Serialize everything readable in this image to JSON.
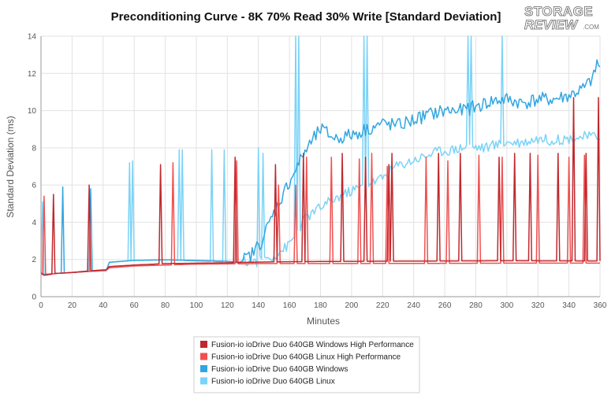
{
  "logo": {
    "line1": "STORAGE",
    "line2": "REVIEW",
    "suffix": ".COM"
  },
  "chart_data": {
    "type": "line",
    "title": "Preconditioning Curve - 8K 70% Read 30% Write [Standard Deviation]",
    "xlabel": "Minutes",
    "ylabel": "Standard Deviation (ms)",
    "xlim": [
      0,
      360
    ],
    "ylim": [
      0,
      14
    ],
    "xticks": [
      0,
      20,
      40,
      60,
      80,
      100,
      120,
      140,
      160,
      180,
      200,
      220,
      240,
      260,
      280,
      300,
      320,
      340,
      360
    ],
    "yticks": [
      0,
      2,
      4,
      6,
      8,
      10,
      12,
      14
    ],
    "grid": true,
    "legend_position": "bottom-center",
    "series": [
      {
        "name": "Fusion-io ioDrive Duo 640GB Windows High Performance",
        "color": "#c0282d",
        "baseline": [
          [
            0,
            1.25
          ],
          [
            2,
            1.15
          ],
          [
            10,
            1.25
          ],
          [
            20,
            1.3
          ],
          [
            30,
            1.38
          ],
          [
            42,
            1.45
          ],
          [
            44,
            1.62
          ],
          [
            60,
            1.7
          ],
          [
            80,
            1.78
          ],
          [
            100,
            1.8
          ],
          [
            120,
            1.82
          ],
          [
            140,
            1.86
          ],
          [
            160,
            1.88
          ],
          [
            200,
            1.9
          ],
          [
            260,
            1.92
          ],
          [
            300,
            1.93
          ],
          [
            360,
            1.92
          ]
        ],
        "spikes": [
          [
            8,
            5.5
          ],
          [
            31,
            6.0
          ],
          [
            77,
            7.1
          ],
          [
            125,
            7.5
          ],
          [
            151,
            7.1
          ],
          [
            169,
            7.7
          ],
          [
            194,
            7.7
          ],
          [
            209,
            7.5
          ],
          [
            224,
            7.1
          ],
          [
            226,
            7.7
          ],
          [
            256,
            7.7
          ],
          [
            270,
            7.7
          ],
          [
            295,
            7.5
          ],
          [
            305,
            7.7
          ],
          [
            315,
            7.7
          ],
          [
            333,
            7.7
          ],
          [
            343,
            10.7
          ],
          [
            351,
            7.7
          ],
          [
            359,
            10.7
          ]
        ]
      },
      {
        "name": "Fusion-io ioDrive Duo 640GB Linux High Performance",
        "color": "#f05050",
        "baseline": [
          [
            0,
            1.3
          ],
          [
            2,
            1.15
          ],
          [
            10,
            1.25
          ],
          [
            20,
            1.3
          ],
          [
            30,
            1.35
          ],
          [
            42,
            1.42
          ],
          [
            44,
            1.55
          ],
          [
            60,
            1.65
          ],
          [
            80,
            1.7
          ],
          [
            100,
            1.75
          ],
          [
            120,
            1.76
          ],
          [
            140,
            1.78
          ],
          [
            200,
            1.78
          ],
          [
            300,
            1.8
          ],
          [
            360,
            1.8
          ]
        ],
        "spikes": [
          [
            2,
            5.4
          ],
          [
            85,
            7.2
          ],
          [
            126,
            7.3
          ],
          [
            153,
            6.0
          ],
          [
            164,
            6.0
          ],
          [
            171,
            7.5
          ],
          [
            187,
            7.5
          ],
          [
            205,
            7.4
          ],
          [
            213,
            7.7
          ],
          [
            223,
            7.0
          ],
          [
            248,
            7.5
          ],
          [
            262,
            7.3
          ],
          [
            282,
            7.6
          ],
          [
            297,
            7.5
          ],
          [
            320,
            7.6
          ],
          [
            340,
            7.5
          ],
          [
            350,
            7.6
          ]
        ]
      },
      {
        "name": "Fusion-io ioDrive Duo 640GB Windows",
        "color": "#32a6e0",
        "baseline": [
          [
            0,
            1.3
          ],
          [
            2,
            1.2
          ],
          [
            10,
            1.25
          ],
          [
            20,
            1.3
          ],
          [
            30,
            1.35
          ],
          [
            42,
            1.4
          ],
          [
            44,
            1.85
          ],
          [
            60,
            1.95
          ],
          [
            80,
            1.98
          ],
          [
            100,
            1.95
          ],
          [
            120,
            1.9
          ],
          [
            128,
            1.85
          ],
          [
            135,
            2.2
          ],
          [
            142,
            3.0
          ],
          [
            150,
            4.5
          ],
          [
            160,
            6.2
          ],
          [
            170,
            7.8
          ],
          [
            180,
            9.0
          ],
          [
            190,
            8.5
          ],
          [
            200,
            8.7
          ],
          [
            210,
            9.0
          ],
          [
            220,
            9.3
          ],
          [
            230,
            9.2
          ],
          [
            240,
            9.5
          ],
          [
            250,
            9.8
          ],
          [
            260,
            10.0
          ],
          [
            270,
            10.0
          ],
          [
            280,
            10.2
          ],
          [
            290,
            10.5
          ],
          [
            300,
            10.6
          ],
          [
            310,
            10.4
          ],
          [
            320,
            10.6
          ],
          [
            330,
            10.6
          ],
          [
            340,
            10.8
          ],
          [
            350,
            11.2
          ],
          [
            356,
            11.8
          ],
          [
            358,
            12.6
          ],
          [
            360,
            12.2
          ]
        ],
        "noise": 0.38,
        "spikes": [
          [
            14,
            5.9
          ],
          [
            32,
            5.8
          ]
        ]
      },
      {
        "name": "Fusion-io ioDrive Duo 640GB Linux",
        "color": "#7bd3f7",
        "baseline": [
          [
            0,
            1.3
          ],
          [
            2,
            1.2
          ],
          [
            10,
            1.25
          ],
          [
            20,
            1.3
          ],
          [
            30,
            1.35
          ],
          [
            42,
            1.4
          ],
          [
            44,
            1.85
          ],
          [
            60,
            1.95
          ],
          [
            80,
            1.98
          ],
          [
            100,
            1.92
          ],
          [
            125,
            1.85
          ],
          [
            140,
            1.9
          ],
          [
            150,
            2.2
          ],
          [
            160,
            2.8
          ],
          [
            170,
            4.2
          ],
          [
            180,
            4.8
          ],
          [
            190,
            5.3
          ],
          [
            200,
            5.7
          ],
          [
            210,
            6.0
          ],
          [
            220,
            6.4
          ],
          [
            228,
            7.0
          ],
          [
            235,
            7.2
          ],
          [
            245,
            7.5
          ],
          [
            255,
            7.8
          ],
          [
            265,
            7.9
          ],
          [
            275,
            8.1
          ],
          [
            285,
            8.0
          ],
          [
            300,
            8.3
          ],
          [
            310,
            8.3
          ],
          [
            320,
            8.5
          ],
          [
            330,
            8.4
          ],
          [
            340,
            8.5
          ],
          [
            350,
            8.6
          ],
          [
            360,
            8.6
          ]
        ],
        "noise": 0.28,
        "spikes": [
          [
            1,
            5.1
          ],
          [
            57,
            7.2
          ],
          [
            59,
            7.3
          ],
          [
            89,
            7.9
          ],
          [
            91,
            7.9
          ],
          [
            110,
            7.9
          ],
          [
            118,
            7.9
          ],
          [
            140,
            8.0
          ],
          [
            143,
            7.7
          ],
          [
            164,
            14
          ],
          [
            166,
            14
          ],
          [
            208,
            14
          ],
          [
            210,
            14
          ],
          [
            275,
            14
          ],
          [
            277,
            14
          ],
          [
            297,
            14
          ]
        ]
      }
    ]
  }
}
